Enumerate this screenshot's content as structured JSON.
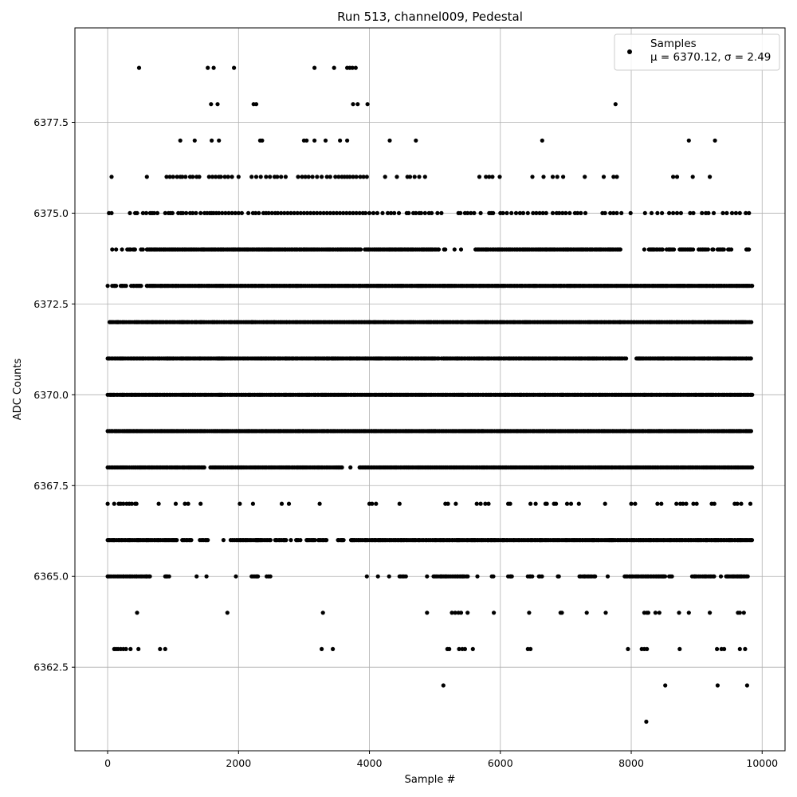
{
  "chart_data": {
    "type": "scatter",
    "title": "Run 513, channel009, Pedestal",
    "xlabel": "Sample #",
    "ylabel": "ADC Counts",
    "xlim": [
      -500,
      10350
    ],
    "ylim": [
      6360.2,
      6380.1
    ],
    "xticks": [
      0,
      2000,
      4000,
      6000,
      8000,
      10000
    ],
    "xtick_labels": [
      "0",
      "2000",
      "4000",
      "6000",
      "8000",
      "10000"
    ],
    "yticks": [
      6362.5,
      6365.0,
      6367.5,
      6370.0,
      6372.5,
      6375.0,
      6377.5
    ],
    "ytick_labels": [
      "6362.5",
      "6365.0",
      "6367.5",
      "6370.0",
      "6372.5",
      "6375.0",
      "6377.5"
    ],
    "grid": true,
    "legend_position": "top-right",
    "legend": {
      "label": "Samples",
      "stats": "μ = 6370.12, σ = 2.49"
    },
    "marker_color": "#000000",
    "x_range": [
      0,
      9850
    ],
    "levels": [
      {
        "y": 6361,
        "x": [
          8230
        ]
      },
      {
        "y": 6362,
        "x": [
          5130,
          8520,
          9320,
          9770
        ]
      },
      {
        "y": 6363,
        "x": [
          100,
          130,
          160,
          200,
          240,
          280,
          350,
          470,
          800,
          880,
          3270,
          3440,
          5190,
          5220,
          5370,
          5420,
          5460,
          5580,
          6420,
          6460,
          7950,
          8160,
          8200,
          8240,
          8740,
          9310,
          9380,
          9420,
          9660,
          9740
        ]
      },
      {
        "y": 6364,
        "x": [
          450,
          1830,
          3290,
          4880,
          5260,
          5310,
          5360,
          5400,
          5500,
          5900,
          6440,
          6920,
          6940,
          7320,
          7610,
          8200,
          8240,
          8260,
          8370,
          8430,
          8730,
          8880,
          9200,
          9630,
          9660,
          9720
        ]
      },
      {
        "y": 6365,
        "x_ranges": [
          [
            0,
            650
          ],
          [
            880,
            960
          ],
          [
            1360,
            1360
          ],
          [
            1510,
            1510
          ],
          [
            1960,
            1960
          ],
          [
            2200,
            2320
          ],
          [
            2430,
            2500
          ],
          [
            3960,
            3980
          ],
          [
            4130,
            4130
          ],
          [
            4300,
            4300
          ],
          [
            4460,
            4560
          ],
          [
            4880,
            4880
          ],
          [
            4980,
            5520
          ],
          [
            5650,
            5650
          ],
          [
            5870,
            5920
          ],
          [
            6120,
            6190
          ],
          [
            6420,
            6500
          ],
          [
            6590,
            6640
          ],
          [
            6880,
            6900
          ],
          [
            7210,
            7450
          ],
          [
            7640,
            7640
          ],
          [
            7900,
            8520
          ],
          [
            8580,
            8630
          ],
          [
            8930,
            9270
          ],
          [
            9370,
            9370
          ],
          [
            9450,
            9800
          ]
        ]
      },
      {
        "y": 6366,
        "x_ranges": [
          [
            0,
            1060
          ],
          [
            1140,
            1290
          ],
          [
            1410,
            1540
          ],
          [
            1770,
            1770
          ],
          [
            1880,
            2500
          ],
          [
            2560,
            2730
          ],
          [
            2800,
            2800
          ],
          [
            2880,
            2960
          ],
          [
            3040,
            3180
          ],
          [
            3220,
            3360
          ],
          [
            3520,
            3620
          ],
          [
            3720,
            4830
          ],
          [
            4860,
            9850
          ]
        ]
      },
      {
        "y": 6367,
        "x": [
          0,
          100,
          170,
          200,
          240,
          290,
          330,
          370,
          420,
          440,
          780,
          1040,
          1180,
          1230,
          1420,
          2020,
          2220,
          2660,
          2770,
          3240,
          4000,
          4040,
          4100,
          4460,
          5160,
          5200,
          5320,
          5640,
          5700,
          5770,
          5820,
          6120,
          6150,
          6460,
          6540,
          6690,
          6710,
          6820,
          6850,
          7020,
          7080,
          7200,
          7600,
          8000,
          8060,
          8400,
          8460,
          8690,
          8750,
          8790,
          8840,
          8950,
          9000,
          9230,
          9270,
          9580,
          9620,
          9680,
          9820
        ]
      },
      {
        "y": 6368,
        "x_ranges": [
          [
            0,
            1500
          ],
          [
            1570,
            3600
          ],
          [
            3710,
            3710
          ],
          [
            3850,
            9850
          ]
        ]
      },
      {
        "y": 6369,
        "x_ranges": [
          [
            0,
            9850
          ]
        ]
      },
      {
        "y": 6370,
        "x_ranges": [
          [
            0,
            9850
          ]
        ]
      },
      {
        "y": 6371,
        "x_ranges": [
          [
            0,
            5060
          ],
          [
            5100,
            7950
          ],
          [
            8080,
            9850
          ]
        ]
      },
      {
        "y": 6372,
        "x_ranges": [
          [
            30,
            9850
          ]
        ]
      },
      {
        "y": 6373,
        "x_ranges": [
          [
            0,
            0
          ],
          [
            70,
            140
          ],
          [
            200,
            300
          ],
          [
            360,
            520
          ],
          [
            600,
            9850
          ]
        ]
      },
      {
        "y": 6374,
        "x_ranges": [
          [
            70,
            70
          ],
          [
            130,
            130
          ],
          [
            220,
            220
          ],
          [
            300,
            360
          ],
          [
            390,
            440
          ],
          [
            510,
            540
          ],
          [
            600,
            3890
          ],
          [
            3930,
            5060
          ],
          [
            5140,
            5180
          ],
          [
            5300,
            5300
          ],
          [
            5400,
            5400
          ],
          [
            5620,
            7840
          ],
          [
            8200,
            8200
          ],
          [
            8270,
            8500
          ],
          [
            8540,
            8660
          ],
          [
            8740,
            8960
          ],
          [
            9030,
            9180
          ],
          [
            9240,
            9280
          ],
          [
            9320,
            9420
          ],
          [
            9480,
            9550
          ],
          [
            9760,
            9800
          ]
        ]
      },
      {
        "y": 6375,
        "x": [
          20,
          60,
          340,
          420,
          450,
          540,
          590,
          650,
          680,
          710,
          760,
          880,
          930,
          960,
          990,
          1080,
          1120,
          1150,
          1200,
          1260,
          1300,
          1350,
          1420,
          1480,
          1520,
          1560,
          1590,
          1620,
          1660,
          1700,
          1750,
          1800,
          1850,
          1900,
          1950,
          2000,
          2050,
          2150,
          2220,
          2260,
          2310,
          2380,
          2420,
          2460,
          2510,
          2560,
          2600,
          2650,
          2700,
          2750,
          2800,
          2850,
          2900,
          2950,
          3000,
          3050,
          3100,
          3150,
          3200,
          3250,
          3300,
          3350,
          3400,
          3450,
          3500,
          3550,
          3600,
          3650,
          3700,
          3750,
          3800,
          3850,
          3900,
          3940,
          4000,
          4060,
          4120,
          4200,
          4280,
          4330,
          4380,
          4450,
          4570,
          4600,
          4670,
          4710,
          4760,
          4790,
          4850,
          4910,
          4950,
          5040,
          5100,
          5360,
          5390,
          5460,
          5500,
          5550,
          5600,
          5700,
          5830,
          5860,
          5890,
          6000,
          6040,
          6100,
          6170,
          6240,
          6300,
          6350,
          6420,
          6500,
          6550,
          6600,
          6650,
          6700,
          6800,
          6860,
          6900,
          6950,
          7000,
          7060,
          7140,
          7180,
          7230,
          7300,
          7560,
          7600,
          7680,
          7730,
          7780,
          7850,
          7990,
          8210,
          8310,
          8400,
          8470,
          8580,
          8640,
          8700,
          8760,
          8900,
          8950,
          9080,
          9140,
          9180,
          9260,
          9400,
          9460,
          9540,
          9600,
          9660,
          9750,
          9800
        ]
      },
      {
        "y": 6376,
        "x": [
          60,
          600,
          900,
          950,
          1000,
          1060,
          1110,
          1140,
          1190,
          1260,
          1300,
          1360,
          1400,
          1550,
          1600,
          1650,
          1700,
          1730,
          1790,
          1840,
          1900,
          2000,
          2200,
          2270,
          2340,
          2420,
          2480,
          2550,
          2590,
          2650,
          2720,
          2910,
          2970,
          3020,
          3070,
          3130,
          3200,
          3270,
          3350,
          3400,
          3480,
          3530,
          3580,
          3620,
          3660,
          3700,
          3750,
          3800,
          3860,
          3910,
          3960,
          4240,
          4420,
          4580,
          4620,
          4690,
          4760,
          4850,
          5680,
          5780,
          5830,
          5880,
          5990,
          6490,
          6660,
          6800,
          6870,
          6960,
          7290,
          7580,
          7730,
          7780,
          8640,
          8700,
          8940,
          9200
        ]
      },
      {
        "y": 6377,
        "x": [
          1110,
          1330,
          1590,
          1700,
          2330,
          2360,
          3000,
          3040,
          3160,
          3330,
          3550,
          3660,
          4310,
          4710,
          6640,
          8880,
          9280
        ]
      },
      {
        "y": 6378,
        "x": [
          1580,
          1680,
          2230,
          2270,
          3750,
          3820,
          3970,
          7760
        ]
      },
      {
        "y": 6379,
        "x": [
          480,
          1530,
          1620,
          1930,
          3160,
          3460,
          3660,
          3700,
          3740,
          3790
        ]
      }
    ]
  }
}
